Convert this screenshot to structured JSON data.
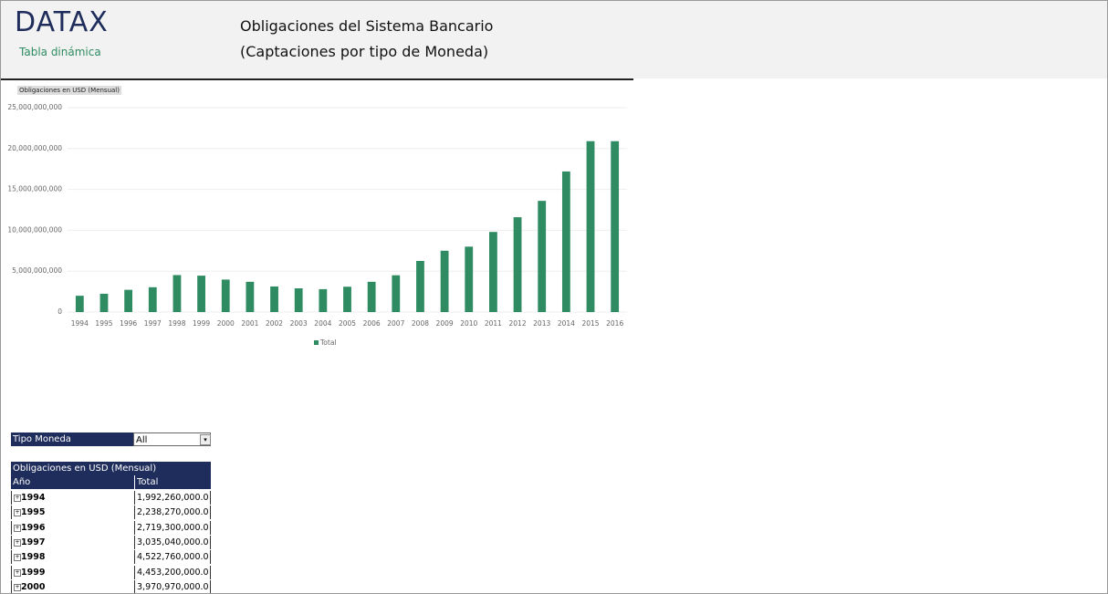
{
  "header": {
    "logo": "DATAX",
    "subtitle": "Tabla dinámica",
    "title_line1": "Obligaciones del Sistema Bancario",
    "title_line2": "(Captaciones por tipo de Moneda)"
  },
  "chart_data": {
    "type": "bar",
    "label": "Obligaciones en USD (Mensual)",
    "categories": [
      "1994",
      "1995",
      "1996",
      "1997",
      "1998",
      "1999",
      "2000",
      "2001",
      "2002",
      "2003",
      "2004",
      "2005",
      "2006",
      "2007",
      "2008",
      "2009",
      "2010",
      "2011",
      "2012",
      "2013",
      "2014",
      "2015",
      "2016"
    ],
    "series": [
      {
        "name": "Total",
        "color": "#2e8b62",
        "values": [
          1992260000,
          2238270000,
          2719300000,
          3035040000,
          4522760000,
          4453200000,
          3970970000,
          3700000000,
          3130000000,
          2900000000,
          2800000000,
          3100000000,
          3700000000,
          4500000000,
          6250000000,
          7500000000,
          8000000000,
          9800000000,
          11600000000,
          13600000000,
          17200000000,
          20900000000,
          20900000000
        ]
      }
    ],
    "ylim": [
      0,
      25000000000
    ],
    "yticks": [
      0,
      {
        "value": 5000000000,
        "label": "5,000,000,000"
      },
      {
        "value": 10000000000,
        "label": "10,000,000,000"
      },
      {
        "value": 15000000000,
        "label": "15,000,000,000"
      },
      {
        "value": 20000000000,
        "label": "20,000,000,000"
      },
      {
        "value": 25000000000,
        "label": "25,000,000,000"
      }
    ],
    "grid": true
  },
  "filter": {
    "label": "Tipo Moneda",
    "value": "All"
  },
  "pivot": {
    "title": "Obligaciones en USD (Mensual)",
    "columns": [
      "Año",
      "Total"
    ],
    "rows": [
      [
        "1994",
        "1,992,260,000.0"
      ],
      [
        "1995",
        "2,238,270,000.0"
      ],
      [
        "1996",
        "2,719,300,000.0"
      ],
      [
        "1997",
        "3,035,040,000.0"
      ],
      [
        "1998",
        "4,522,760,000.0"
      ],
      [
        "1999",
        "4,453,200,000.0"
      ],
      [
        "2000",
        "3,970,970,000.0"
      ]
    ]
  }
}
